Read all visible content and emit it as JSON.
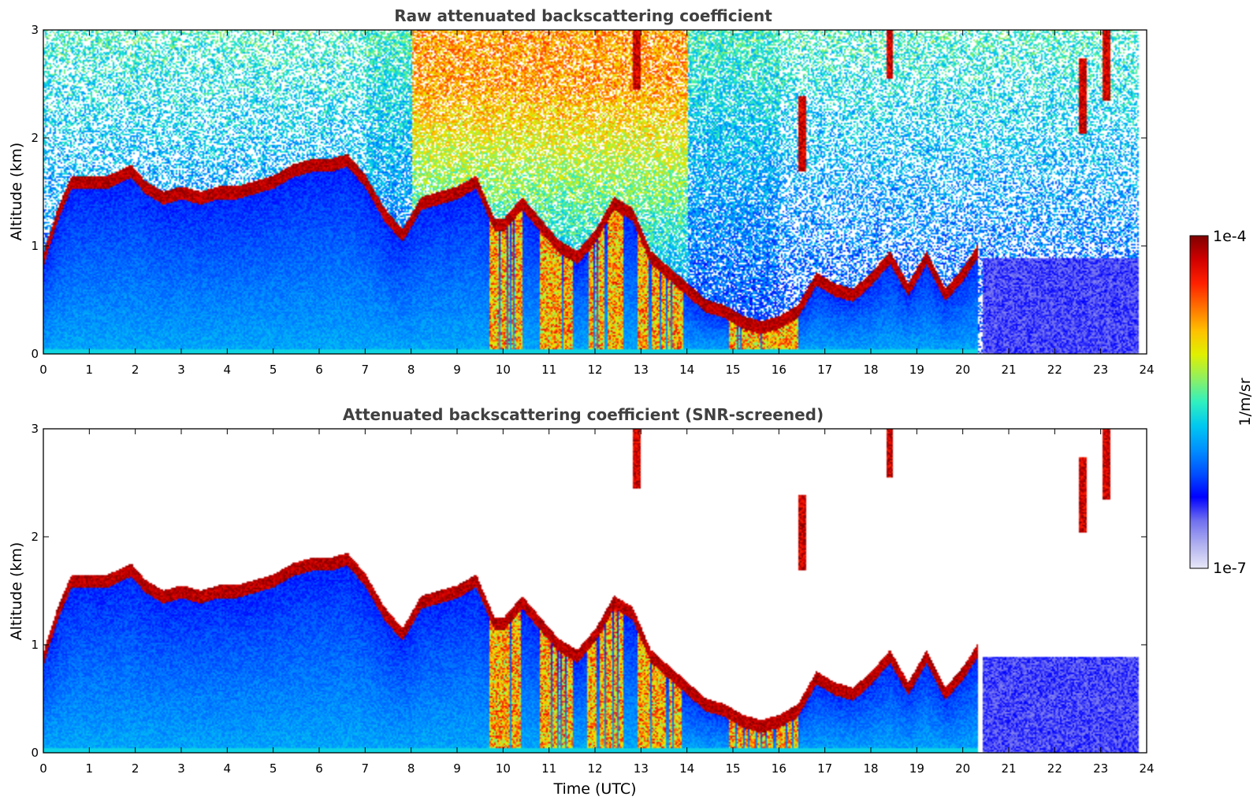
{
  "chart_data": [
    {
      "type": "heatmap",
      "title": "Raw attenuated backscattering coefficient",
      "xlabel": "",
      "ylabel": "Altitude (km)",
      "xlim": [
        0,
        24
      ],
      "ylim": [
        0,
        3
      ],
      "xticks": [
        "0",
        "1",
        "2",
        "3",
        "4",
        "5",
        "6",
        "7",
        "8",
        "9",
        "10",
        "11",
        "12",
        "13",
        "14",
        "15",
        "16",
        "17",
        "18",
        "19",
        "20",
        "21",
        "22",
        "23",
        "24"
      ],
      "yticks": [
        "0",
        "1",
        "2",
        "3"
      ],
      "screened": false,
      "cloud_base_km": [
        [
          0.0,
          0.9
        ],
        [
          0.3,
          1.3
        ],
        [
          0.6,
          1.6
        ],
        [
          1.0,
          1.6
        ],
        [
          1.4,
          1.6
        ],
        [
          1.9,
          1.7
        ],
        [
          2.2,
          1.55
        ],
        [
          2.6,
          1.45
        ],
        [
          3.0,
          1.5
        ],
        [
          3.4,
          1.45
        ],
        [
          3.8,
          1.5
        ],
        [
          4.2,
          1.5
        ],
        [
          4.6,
          1.55
        ],
        [
          5.0,
          1.6
        ],
        [
          5.4,
          1.7
        ],
        [
          5.8,
          1.75
        ],
        [
          6.2,
          1.75
        ],
        [
          6.6,
          1.8
        ],
        [
          7.0,
          1.6
        ],
        [
          7.4,
          1.3
        ],
        [
          7.8,
          1.1
        ],
        [
          8.2,
          1.4
        ],
        [
          8.6,
          1.45
        ],
        [
          9.0,
          1.5
        ],
        [
          9.4,
          1.6
        ],
        [
          9.8,
          1.2
        ],
        [
          10.0,
          1.2
        ],
        [
          10.4,
          1.4
        ],
        [
          10.8,
          1.2
        ],
        [
          11.2,
          1.0
        ],
        [
          11.6,
          0.9
        ],
        [
          12.0,
          1.1
        ],
        [
          12.4,
          1.4
        ],
        [
          12.8,
          1.3
        ],
        [
          13.2,
          0.9
        ],
        [
          13.6,
          0.75
        ],
        [
          14.0,
          0.6
        ],
        [
          14.4,
          0.45
        ],
        [
          14.8,
          0.4
        ],
        [
          15.2,
          0.3
        ],
        [
          15.6,
          0.25
        ],
        [
          16.0,
          0.3
        ],
        [
          16.4,
          0.4
        ],
        [
          16.8,
          0.7
        ],
        [
          17.2,
          0.6
        ],
        [
          17.6,
          0.55
        ],
        [
          18.0,
          0.7
        ],
        [
          18.4,
          0.9
        ],
        [
          18.8,
          0.6
        ],
        [
          19.2,
          0.9
        ],
        [
          19.6,
          0.55
        ],
        [
          20.0,
          0.75
        ],
        [
          20.3,
          0.95
        ]
      ],
      "elevated_clouds_km": [
        [
          12.9,
          2.8
        ],
        [
          18.4,
          2.9
        ],
        [
          22.6,
          2.4
        ],
        [
          23.1,
          2.7
        ],
        [
          16.5,
          2.05
        ]
      ],
      "precipitation_hours": [
        [
          9.7,
          10.4
        ],
        [
          10.8,
          11.5
        ],
        [
          11.8,
          12.6
        ],
        [
          12.9,
          13.9
        ],
        [
          14.9,
          16.4
        ]
      ]
    },
    {
      "type": "heatmap",
      "title": "Attenuated backscattering coefficient (SNR-screened)",
      "xlabel": "Time (UTC)",
      "ylabel": "Altitude (km)",
      "xlim": [
        0,
        24
      ],
      "ylim": [
        0,
        3
      ],
      "xticks": [
        "0",
        "1",
        "2",
        "3",
        "4",
        "5",
        "6",
        "7",
        "8",
        "9",
        "10",
        "11",
        "12",
        "13",
        "14",
        "15",
        "16",
        "17",
        "18",
        "19",
        "20",
        "21",
        "22",
        "23",
        "24"
      ],
      "yticks": [
        "0",
        "1",
        "2",
        "3"
      ],
      "screened": true,
      "cloud_base_km": [
        [
          0.0,
          0.9
        ],
        [
          0.3,
          1.3
        ],
        [
          0.6,
          1.6
        ],
        [
          1.0,
          1.6
        ],
        [
          1.4,
          1.6
        ],
        [
          1.9,
          1.7
        ],
        [
          2.2,
          1.55
        ],
        [
          2.6,
          1.45
        ],
        [
          3.0,
          1.5
        ],
        [
          3.4,
          1.45
        ],
        [
          3.8,
          1.5
        ],
        [
          4.2,
          1.5
        ],
        [
          4.6,
          1.55
        ],
        [
          5.0,
          1.6
        ],
        [
          5.4,
          1.7
        ],
        [
          5.8,
          1.75
        ],
        [
          6.2,
          1.75
        ],
        [
          6.6,
          1.8
        ],
        [
          7.0,
          1.6
        ],
        [
          7.4,
          1.3
        ],
        [
          7.8,
          1.1
        ],
        [
          8.2,
          1.4
        ],
        [
          8.6,
          1.45
        ],
        [
          9.0,
          1.5
        ],
        [
          9.4,
          1.6
        ],
        [
          9.8,
          1.2
        ],
        [
          10.0,
          1.2
        ],
        [
          10.4,
          1.4
        ],
        [
          10.8,
          1.2
        ],
        [
          11.2,
          1.0
        ],
        [
          11.6,
          0.9
        ],
        [
          12.0,
          1.1
        ],
        [
          12.4,
          1.4
        ],
        [
          12.8,
          1.3
        ],
        [
          13.2,
          0.9
        ],
        [
          13.6,
          0.75
        ],
        [
          14.0,
          0.6
        ],
        [
          14.4,
          0.45
        ],
        [
          14.8,
          0.4
        ],
        [
          15.2,
          0.3
        ],
        [
          15.6,
          0.25
        ],
        [
          16.0,
          0.3
        ],
        [
          16.4,
          0.4
        ],
        [
          16.8,
          0.7
        ],
        [
          17.2,
          0.6
        ],
        [
          17.6,
          0.55
        ],
        [
          18.0,
          0.7
        ],
        [
          18.4,
          0.9
        ],
        [
          18.8,
          0.6
        ],
        [
          19.2,
          0.9
        ],
        [
          19.6,
          0.55
        ],
        [
          20.0,
          0.75
        ],
        [
          20.3,
          0.95
        ]
      ],
      "elevated_clouds_km": [
        [
          12.9,
          2.8
        ],
        [
          18.4,
          2.9
        ],
        [
          22.6,
          2.4
        ],
        [
          23.1,
          2.7
        ],
        [
          16.5,
          2.05
        ]
      ],
      "precipitation_hours": [
        [
          9.7,
          10.4
        ],
        [
          10.8,
          11.5
        ],
        [
          11.8,
          12.6
        ],
        [
          12.9,
          13.9
        ],
        [
          14.9,
          16.4
        ]
      ]
    }
  ],
  "colorbar": {
    "label": "1/m/sr",
    "max_label": "1e-4",
    "min_label": "1e-7",
    "scale": "log",
    "colormap": [
      "#e8e8f8",
      "#b0b0f0",
      "#7070f0",
      "#0000ff",
      "#0050ff",
      "#0090ff",
      "#00c8f0",
      "#30f0c0",
      "#90f060",
      "#e0f000",
      "#ffc000",
      "#ff7000",
      "#ff2000",
      "#d00000",
      "#800000"
    ]
  }
}
